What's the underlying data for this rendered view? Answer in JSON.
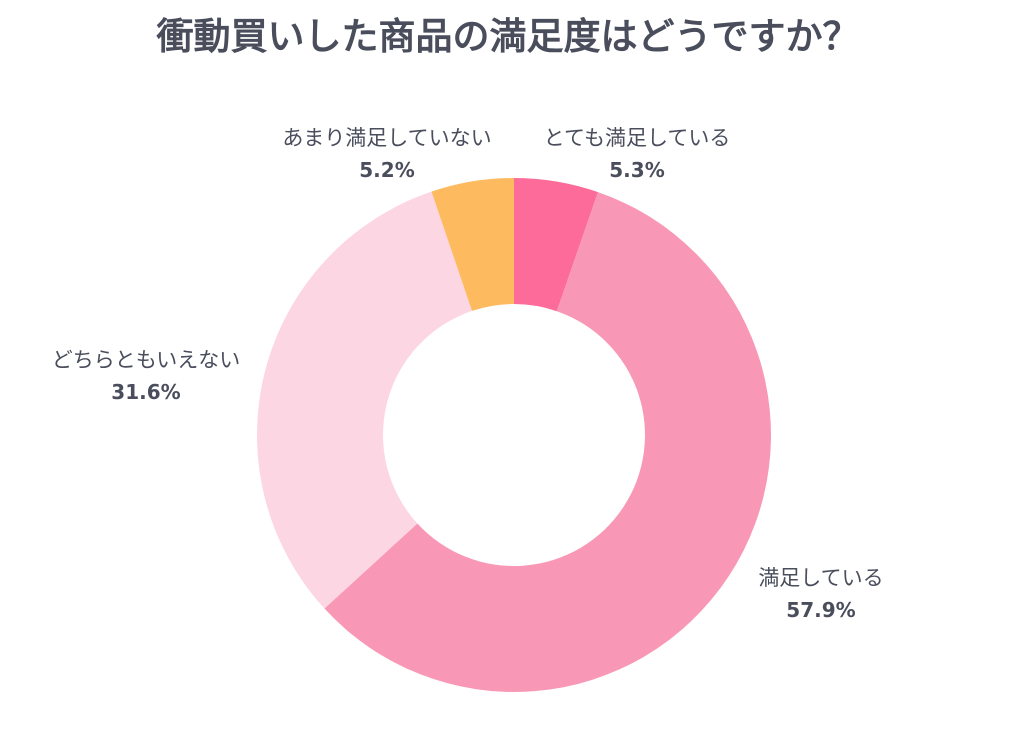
{
  "chart_data": {
    "type": "pie",
    "style": "donut",
    "title": "衝動買いした商品の満足度はどうですか？",
    "series": [
      {
        "values": [
          5.3,
          57.9,
          31.6,
          5.2
        ]
      }
    ],
    "slices": [
      {
        "label": "とても満足している",
        "value": 5.3,
        "display": "5.3%",
        "color": "#fc6b9a"
      },
      {
        "label": "満足している",
        "value": 57.9,
        "display": "57.9%",
        "color": "#f898b6"
      },
      {
        "label": "どちらともいえない",
        "value": 31.6,
        "display": "31.6%",
        "color": "#fdd6e3"
      },
      {
        "label": "あまり満足していない",
        "value": 5.2,
        "display": "5.2%",
        "color": "#fdba5e"
      }
    ],
    "start": "top",
    "direction": "clockwise",
    "legend": "none"
  }
}
